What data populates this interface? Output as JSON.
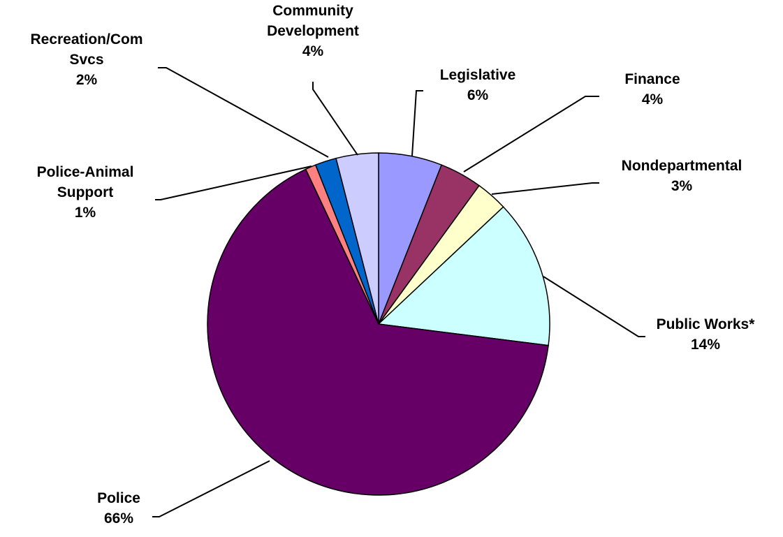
{
  "chart_data": {
    "type": "pie",
    "title": "",
    "start_angle_deg": 0,
    "direction": "clockwise",
    "slices": [
      {
        "label": [
          "Legislative"
        ],
        "value": 6,
        "value_label": "6%",
        "color": "#9999ff"
      },
      {
        "label": [
          "Finance"
        ],
        "value": 4,
        "value_label": "4%",
        "color": "#993366"
      },
      {
        "label": [
          "Nondepartmental"
        ],
        "value": 3,
        "value_label": "3%",
        "color": "#ffffcc"
      },
      {
        "label": [
          "Public Works*"
        ],
        "value": 14,
        "value_label": "14%",
        "color": "#ccffff"
      },
      {
        "label": [
          "Police"
        ],
        "value": 66,
        "value_label": "66%",
        "color": "#660066"
      },
      {
        "label": [
          "Police-Animal",
          "Support"
        ],
        "value": 1,
        "value_label": "1%",
        "color": "#ff8080"
      },
      {
        "label": [
          "Recreation/Com",
          "Svcs"
        ],
        "value": 2,
        "value_label": "2%",
        "color": "#0066cc"
      },
      {
        "label": [
          "Community",
          "Development"
        ],
        "value": 4,
        "value_label": "4%",
        "color": "#ccccff"
      }
    ]
  }
}
